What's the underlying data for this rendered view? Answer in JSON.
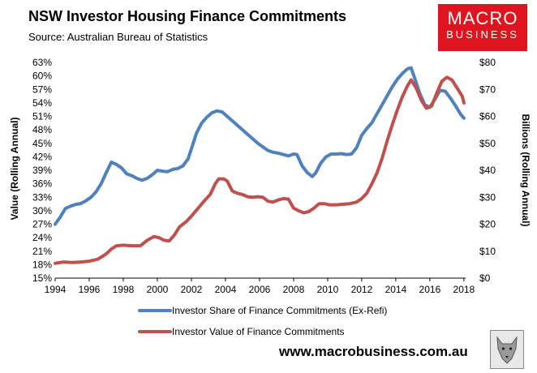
{
  "header": {
    "title": "NSW Investor Housing Finance Commitments",
    "source": "Source: Australian Bureau of Statistics"
  },
  "logo": {
    "line1": "MACRO",
    "line2": "BUSINESS"
  },
  "footer": {
    "url": "www.macrobusiness.com.au"
  },
  "colors": {
    "share_series": "#4f81bd",
    "value_series": "#c0504d",
    "logo_bg": "#e0141e"
  },
  "chart_data": {
    "type": "line",
    "title": "NSW Investor Housing Finance Commitments",
    "subtitle": "Source: Australian Bureau of Statistics",
    "ylabel_left": "Value (Rolling Annual)",
    "ylabel_right": "Billions (Rolling Annual)",
    "x_ticks": [
      "1994",
      "1996",
      "1998",
      "2000",
      "2002",
      "2004",
      "2006",
      "2008",
      "2010",
      "2012",
      "2014",
      "2016",
      "2018"
    ],
    "xlim": [
      1994,
      2018.1
    ],
    "y_left_ticks": [
      "15%",
      "18%",
      "21%",
      "24%",
      "27%",
      "30%",
      "33%",
      "36%",
      "39%",
      "42%",
      "45%",
      "48%",
      "51%",
      "54%",
      "57%",
      "60%",
      "63%"
    ],
    "ylim_left": [
      15,
      63
    ],
    "y_right_ticks": [
      "$0",
      "$10",
      "$20",
      "$30",
      "$40",
      "$50",
      "$60",
      "$70",
      "$80"
    ],
    "ylim_right": [
      0,
      80
    ],
    "legend_position": "bottom",
    "grid": false,
    "series": [
      {
        "name": "Investor Share of Finance Commitments (Ex-Refi)",
        "axis": "left",
        "x": [
          1994.0,
          1994.3,
          1994.6,
          1994.9,
          1995.2,
          1995.5,
          1995.8,
          1996.1,
          1996.4,
          1996.7,
          1997.0,
          1997.3,
          1997.6,
          1997.9,
          1998.2,
          1998.5,
          1998.8,
          1999.1,
          1999.4,
          1999.7,
          2000.0,
          2000.3,
          2000.6,
          2000.9,
          2001.2,
          2001.5,
          2001.8,
          2002.0,
          2002.3,
          2002.6,
          2002.9,
          2003.2,
          2003.5,
          2003.8,
          2004.1,
          2004.4,
          2004.7,
          2005.0,
          2005.3,
          2005.6,
          2005.9,
          2006.2,
          2006.5,
          2006.8,
          2007.1,
          2007.4,
          2007.7,
          2008.0,
          2008.2,
          2008.5,
          2008.8,
          2009.1,
          2009.3,
          2009.6,
          2009.9,
          2010.2,
          2010.5,
          2010.8,
          2011.1,
          2011.4,
          2011.7,
          2012.0,
          2012.3,
          2012.6,
          2012.9,
          2013.2,
          2013.5,
          2013.8,
          2014.1,
          2014.4,
          2014.7,
          2014.9,
          2015.1,
          2015.4,
          2015.7,
          2016.0,
          2016.3,
          2016.6,
          2016.9,
          2017.2,
          2017.5,
          2017.8,
          2018.0
        ],
        "values": [
          27.0,
          28.6,
          30.5,
          31.0,
          31.4,
          31.6,
          32.2,
          33.0,
          34.2,
          36.0,
          38.5,
          40.8,
          40.3,
          39.5,
          38.2,
          37.8,
          37.2,
          36.8,
          37.2,
          38.0,
          39.0,
          38.8,
          38.7,
          39.2,
          39.4,
          40.0,
          41.5,
          43.8,
          47.3,
          49.5,
          50.8,
          51.8,
          52.2,
          52.0,
          51.0,
          50.0,
          49.0,
          48.0,
          47.0,
          46.0,
          45.0,
          44.2,
          43.4,
          43.0,
          42.8,
          42.5,
          42.2,
          42.6,
          42.5,
          40.0,
          38.5,
          37.6,
          38.4,
          40.6,
          42.0,
          42.6,
          42.6,
          42.7,
          42.5,
          42.6,
          44.0,
          46.8,
          48.3,
          49.6,
          51.6,
          53.6,
          55.6,
          57.6,
          59.3,
          60.6,
          61.6,
          61.8,
          59.6,
          56.2,
          53.6,
          53.0,
          54.8,
          56.8,
          56.6,
          55.1,
          53.4,
          51.5,
          50.6
        ]
      },
      {
        "name": "Investor Value of Finance Commitments",
        "axis": "right",
        "x": [
          1994.0,
          1994.5,
          1995.0,
          1995.5,
          1996.0,
          1996.5,
          1997.0,
          1997.3,
          1997.6,
          1998.0,
          1998.5,
          1999.0,
          1999.4,
          1999.8,
          2000.1,
          2000.4,
          2000.7,
          2001.0,
          2001.3,
          2001.7,
          2002.0,
          2002.4,
          2002.8,
          2003.1,
          2003.4,
          2003.6,
          2003.9,
          2004.1,
          2004.4,
          2004.7,
          2005.0,
          2005.3,
          2005.6,
          2005.9,
          2006.2,
          2006.5,
          2006.8,
          2007.1,
          2007.4,
          2007.7,
          2008.0,
          2008.3,
          2008.6,
          2008.9,
          2009.2,
          2009.5,
          2009.8,
          2010.1,
          2010.5,
          2010.9,
          2011.3,
          2011.7,
          2012.0,
          2012.3,
          2012.6,
          2012.9,
          2013.2,
          2013.5,
          2013.8,
          2014.1,
          2014.4,
          2014.7,
          2014.9,
          2015.2,
          2015.5,
          2015.8,
          2016.1,
          2016.4,
          2016.7,
          2017.0,
          2017.3,
          2017.6,
          2017.9,
          2018.0
        ],
        "values": [
          5.5,
          6.0,
          5.8,
          6.0,
          6.3,
          7.0,
          9.0,
          10.8,
          12.0,
          12.2,
          12.0,
          12.0,
          14.0,
          15.4,
          15.0,
          14.0,
          13.8,
          16.0,
          19.0,
          21.0,
          23.0,
          26.0,
          29.0,
          31.0,
          35.0,
          36.8,
          36.8,
          36.0,
          32.3,
          31.5,
          31.0,
          30.2,
          30.0,
          30.2,
          30.0,
          28.5,
          28.2,
          29.0,
          29.5,
          29.3,
          26.0,
          25.0,
          24.2,
          24.7,
          26.0,
          27.6,
          27.6,
          27.2,
          27.2,
          27.4,
          27.6,
          28.2,
          29.5,
          31.5,
          35.0,
          39.0,
          44.5,
          51.0,
          57.0,
          62.5,
          67.5,
          71.5,
          73.5,
          70.5,
          66.0,
          63.0,
          63.8,
          68.5,
          73.0,
          74.5,
          73.5,
          70.5,
          67.5,
          65.0
        ]
      }
    ]
  }
}
